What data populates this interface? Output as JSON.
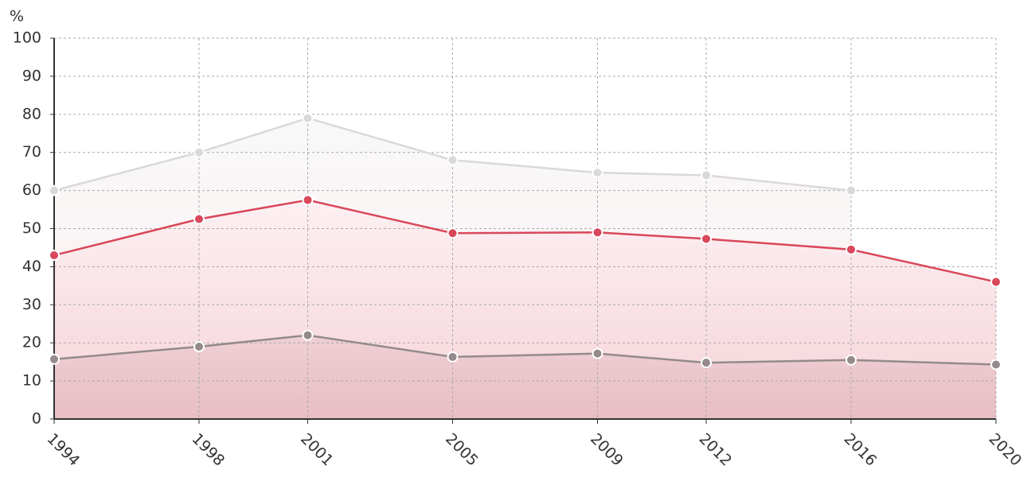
{
  "chart_data": {
    "type": "line",
    "y_unit": "%",
    "x": [
      1994,
      1998,
      2001,
      2005,
      2009,
      2012,
      2016,
      2020
    ],
    "xlim": [
      1994,
      2020
    ],
    "xticks": [
      1994,
      1998,
      2001,
      2005,
      2009,
      2012,
      2016,
      2020
    ],
    "ylim": [
      0,
      100
    ],
    "yticks": [
      0,
      10,
      20,
      30,
      40,
      50,
      60,
      70,
      80,
      90,
      100
    ],
    "grid": true,
    "series": [
      {
        "color": "#d9d9d9",
        "values": [
          60,
          70,
          79,
          68,
          64.7,
          64,
          60,
          null
        ]
      },
      {
        "color": "#d9475a",
        "values": [
          43,
          52.5,
          57.5,
          48.8,
          49,
          47.3,
          44.5,
          36
        ]
      },
      {
        "color": "#948a8c",
        "values": [
          15.7,
          19,
          22,
          16.3,
          17.2,
          14.8,
          15.5,
          14.3
        ]
      }
    ]
  }
}
